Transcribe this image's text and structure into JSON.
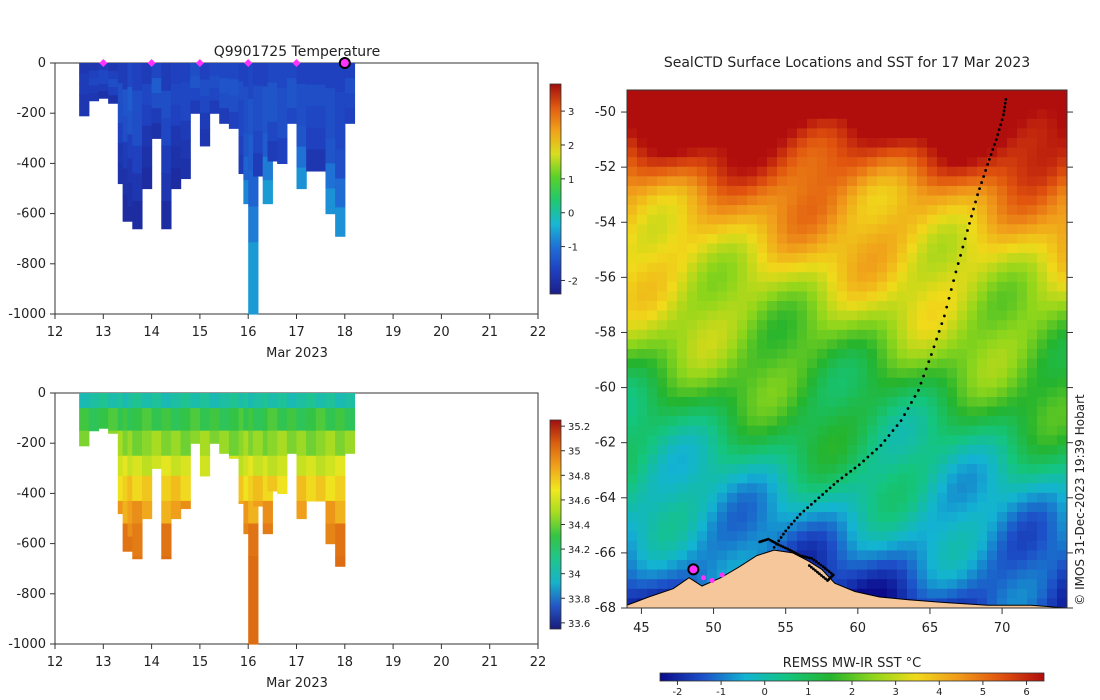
{
  "colors": {
    "temp_scale": [
      "#1b1f8a",
      "#1f3fbf",
      "#1f6fd6",
      "#19b7d3",
      "#20c870",
      "#58d12a",
      "#d9dd1f",
      "#f1a21a",
      "#e05a12",
      "#a10d0d"
    ],
    "sal_scale": [
      "#1a1a7a",
      "#2457c6",
      "#17b2c8",
      "#20c58d",
      "#34c445",
      "#a6dc22",
      "#f0e81f",
      "#f0a21c",
      "#d96010",
      "#a01010"
    ],
    "sst_scale": [
      "#0a0a8a",
      "#1d4fc8",
      "#13b3d2",
      "#14c57e",
      "#25b42e",
      "#8fd61b",
      "#f0da1a",
      "#f09a1a",
      "#e0520e",
      "#b00d0d"
    ],
    "land": "#f5c79a",
    "marker": "#ff33ff",
    "current": "#000000"
  },
  "chart_data": [
    {
      "id": "temperature",
      "type": "heatmap",
      "title": "Q9901725  Temperature",
      "xlabel": "Mar 2023",
      "ylabel": "",
      "x_ticks": [
        "12",
        "13",
        "14",
        "15",
        "16",
        "17",
        "18",
        "19",
        "20",
        "21",
        "22"
      ],
      "xlim": [
        12,
        22
      ],
      "y_ticks": [
        "0",
        "-200",
        "-400",
        "-600",
        "-800",
        "-1000"
      ],
      "ylim": [
        -1000,
        0
      ],
      "colorbar": {
        "min": -2.4,
        "max": 3.8,
        "ticks": [
          "3",
          "2",
          "1",
          "0",
          "-1",
          "-2"
        ]
      },
      "markers_x": [
        13,
        14,
        15,
        16,
        17
      ],
      "current_x": 18,
      "profiles": [
        {
          "day": 12.5,
          "depth": 210,
          "v": [
            -1.9,
            -1.8,
            -1.8,
            -1.9,
            -1.9
          ]
        },
        {
          "day": 12.7,
          "depth": 150,
          "v": [
            -1.9,
            -1.7,
            -1.6,
            -1.8,
            -1.9
          ]
        },
        {
          "day": 12.9,
          "depth": 140,
          "v": [
            -1.8,
            -1.6,
            -1.6,
            -1.8,
            -2.0
          ]
        },
        {
          "day": 13.1,
          "depth": 160,
          "v": [
            -1.9,
            -1.7,
            -1.5,
            -1.7,
            -2.0
          ]
        },
        {
          "day": 13.3,
          "depth": 480,
          "v": [
            -1.8,
            -1.5,
            -1.5,
            -1.7,
            -1.9,
            -2.0
          ]
        },
        {
          "day": 13.4,
          "depth": 630,
          "v": [
            -1.8,
            -1.4,
            -1.5,
            -1.8,
            -2.0,
            -2.1
          ]
        },
        {
          "day": 13.5,
          "depth": 570,
          "v": [
            -1.6,
            -1.3,
            -1.4,
            -1.7,
            -1.9,
            -2.0
          ]
        },
        {
          "day": 13.6,
          "depth": 660,
          "v": [
            -1.7,
            -1.5,
            -1.5,
            -1.7,
            -1.9,
            -2.1
          ]
        },
        {
          "day": 13.8,
          "depth": 500,
          "v": [
            -1.8,
            -1.6,
            -1.7,
            -1.9,
            -2.0,
            -2.1
          ]
        },
        {
          "day": 14.0,
          "depth": 300,
          "v": [
            -1.6,
            -1.3,
            -1.5,
            -1.8,
            -2.0
          ]
        },
        {
          "day": 14.2,
          "depth": 660,
          "v": [
            -1.8,
            -1.5,
            -1.6,
            -1.8,
            -1.9,
            -2.1
          ]
        },
        {
          "day": 14.4,
          "depth": 500,
          "v": [
            -1.7,
            -1.6,
            -1.7,
            -1.9,
            -2.0,
            -2.1
          ]
        },
        {
          "day": 14.6,
          "depth": 460,
          "v": [
            -1.7,
            -1.6,
            -1.6,
            -1.8,
            -1.9,
            -2.0
          ]
        },
        {
          "day": 14.8,
          "depth": 200,
          "v": [
            -1.5,
            -1.4,
            -1.6,
            -1.8
          ]
        },
        {
          "day": 15.0,
          "depth": 330,
          "v": [
            -1.7,
            -1.5,
            -1.6,
            -1.8,
            -1.9
          ]
        },
        {
          "day": 15.2,
          "depth": 200,
          "v": [
            -1.6,
            -1.5,
            -1.6,
            -1.8
          ]
        },
        {
          "day": 15.4,
          "depth": 240,
          "v": [
            -1.6,
            -1.4,
            -1.5,
            -1.8
          ]
        },
        {
          "day": 15.6,
          "depth": 260,
          "v": [
            -1.6,
            -1.4,
            -1.5,
            -1.7
          ]
        },
        {
          "day": 15.8,
          "depth": 440,
          "v": [
            -1.7,
            -1.5,
            -1.6,
            -1.6,
            -1.7,
            -1.8
          ]
        },
        {
          "day": 15.9,
          "depth": 560,
          "v": [
            -1.7,
            -1.5,
            -1.5,
            -1.4,
            -1.2,
            -0.8
          ]
        },
        {
          "day": 16.0,
          "depth": 1000,
          "v": [
            -1.6,
            -1.4,
            -1.3,
            -1.2,
            -0.9,
            -0.6,
            -0.6
          ]
        },
        {
          "day": 16.1,
          "depth": 450,
          "v": [
            -1.7,
            -1.5,
            -1.5,
            -1.6,
            -1.8
          ]
        },
        {
          "day": 16.3,
          "depth": 560,
          "v": [
            -1.7,
            -1.4,
            -1.4,
            -1.3,
            -0.9,
            -0.6
          ]
        },
        {
          "day": 16.4,
          "depth": 390,
          "v": [
            -1.6,
            -1.4,
            -1.4,
            -1.6,
            -1.8
          ]
        },
        {
          "day": 16.6,
          "depth": 400,
          "v": [
            -1.6,
            -1.5,
            -1.5,
            -1.7
          ]
        },
        {
          "day": 16.8,
          "depth": 240,
          "v": [
            -1.6,
            -1.4,
            -1.4,
            -1.6
          ]
        },
        {
          "day": 17.0,
          "depth": 500,
          "v": [
            -1.7,
            -1.5,
            -1.5,
            -1.4,
            -1.0,
            -0.7
          ]
        },
        {
          "day": 17.2,
          "depth": 430,
          "v": [
            -1.7,
            -1.5,
            -1.6,
            -1.7,
            -1.9
          ]
        },
        {
          "day": 17.4,
          "depth": 430,
          "v": [
            -1.7,
            -1.5,
            -1.6,
            -1.7,
            -1.9
          ]
        },
        {
          "day": 17.6,
          "depth": 600,
          "v": [
            -1.7,
            -1.5,
            -1.5,
            -1.4,
            -1.0,
            -0.7
          ]
        },
        {
          "day": 17.8,
          "depth": 690,
          "v": [
            -1.7,
            -1.6,
            -1.6,
            -1.5,
            -1.1,
            -0.7
          ]
        },
        {
          "day": 18.0,
          "depth": 240,
          "v": [
            -1.7,
            -1.5,
            -1.6,
            -1.7
          ]
        }
      ]
    },
    {
      "id": "salinity",
      "type": "heatmap",
      "title": "",
      "xlabel": "Mar 2023",
      "ylabel": "",
      "x_ticks": [
        "12",
        "13",
        "14",
        "15",
        "16",
        "17",
        "18",
        "19",
        "20",
        "21",
        "22"
      ],
      "xlim": [
        12,
        22
      ],
      "y_ticks": [
        "0",
        "-200",
        "-400",
        "-600",
        "-800",
        "-1000"
      ],
      "ylim": [
        -1000,
        0
      ],
      "colorbar": {
        "min": 33.55,
        "max": 35.25,
        "ticks": [
          "35.2",
          "35",
          "34.8",
          "34.6",
          "34.4",
          "34.2",
          "34",
          "33.8",
          "33.6"
        ]
      },
      "layers": [
        {
          "to": 60,
          "v": 34.05
        },
        {
          "to": 150,
          "v": 34.3
        },
        {
          "to": 250,
          "v": 34.45
        },
        {
          "to": 330,
          "v": 34.6
        },
        {
          "to": 430,
          "v": 34.75
        },
        {
          "to": 520,
          "v": 34.88
        },
        {
          "to": 650,
          "v": 34.98
        },
        {
          "to": 1000,
          "v": 35.05
        }
      ]
    },
    {
      "id": "sst-map",
      "type": "heatmap",
      "title": "SealCTD Surface Locations and SST for 17 Mar 2023",
      "xlabel": "REMSS MW-IR SST °C",
      "ylabel": "",
      "x_ticks": [
        "45",
        "50",
        "55",
        "60",
        "65",
        "70"
      ],
      "xlim": [
        44,
        74.5
      ],
      "y_ticks": [
        "-50",
        "-52",
        "-54",
        "-56",
        "-58",
        "-60",
        "-62",
        "-64",
        "-66",
        "-68"
      ],
      "ylim": [
        -68,
        -49.2
      ],
      "colorbar": {
        "min": -2.4,
        "max": 6.4,
        "ticks": [
          "-2",
          "-1",
          "0",
          "1",
          "2",
          "3",
          "4",
          "5",
          "6"
        ]
      },
      "track_lon": [
        54.2,
        55.0,
        56.0,
        57.3,
        58.6,
        60.1,
        61.6,
        63.0,
        64.2,
        65.1,
        66.0,
        66.8,
        67.6,
        68.3,
        69.0,
        69.6,
        70.1,
        70.3
      ],
      "track_lat": [
        -65.8,
        -65.2,
        -64.6,
        -64.0,
        -63.4,
        -62.8,
        -62.1,
        -61.2,
        -60.1,
        -58.8,
        -57.4,
        -55.8,
        -54.3,
        -53.0,
        -51.9,
        -51.0,
        -50.1,
        -49.4
      ],
      "coast_track_lon": [
        53.2,
        53.8,
        54.5,
        55.3,
        56.0,
        56.8,
        57.6,
        58.3,
        57.9,
        57.2,
        56.5
      ],
      "coast_track_lat": [
        -65.6,
        -65.5,
        -65.7,
        -65.9,
        -66.1,
        -66.2,
        -66.5,
        -66.8,
        -67.0,
        -66.7,
        -66.4
      ],
      "markers_lon": [
        49.3,
        49.9,
        50.6
      ],
      "markers_lat": [
        -66.9,
        -67.0,
        -66.8
      ],
      "current_lon": 48.6,
      "current_lat": -66.6
    }
  ],
  "footer": {
    "credit": "© IMOS 31-Dec-2023 19:39 Hobart"
  }
}
